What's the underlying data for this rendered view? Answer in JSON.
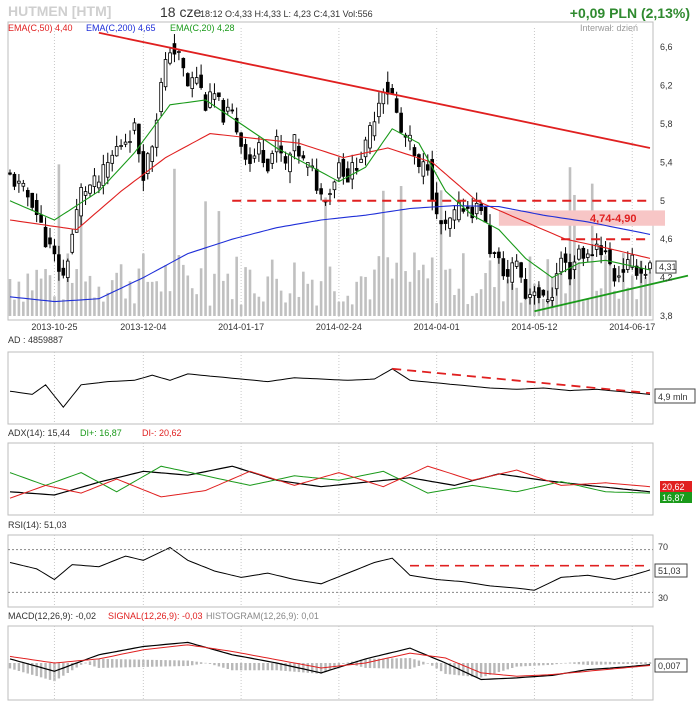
{
  "header": {
    "ticker": "HUTMEN [HTM]",
    "date": "18 cze",
    "time": "18:12",
    "ohlc": "O:4,33  H:4,33  L: 4,23  C:4,31  Vol:556",
    "change": "+0,09 PLN (2,13%)",
    "interval": "Interwał: dzień"
  },
  "legend": {
    "ema50": "EMA(C,50) 4,40",
    "ema200": "EMA(C,200) 4,65",
    "ema20": "EMA(C,20) 4,28"
  },
  "colors": {
    "ema50": "#e02020",
    "ema200": "#1f2fd8",
    "ema20": "#1a9a1a",
    "candle": "#000000",
    "volume": "#c0c0c0",
    "trend_red": "#e02020",
    "trend_green": "#1a9a1a",
    "band": "#f7c6c6",
    "grid": "#c8c8c8"
  },
  "resistance_band_label": "4,74-4,90",
  "last_price_label": "4,31",
  "chart_data": [
    {
      "type": "candlestick",
      "name": "price",
      "ylim": [
        3.8,
        6.8
      ],
      "y_ticks": [
        "6,6",
        "6,2",
        "5,8",
        "5,4",
        "5",
        "4,6",
        "4,2",
        "3,8"
      ],
      "x_ticks": [
        "2013-10-25",
        "2013-12-04",
        "2014-01-17",
        "2014-02-24",
        "2014-04-01",
        "2014-05-12",
        "2014-06-17"
      ],
      "close_path": [
        [
          0,
          5.25
        ],
        [
          5,
          5.0
        ],
        [
          8,
          4.6
        ],
        [
          12,
          4.2
        ],
        [
          16,
          5.1
        ],
        [
          20,
          5.2
        ],
        [
          24,
          5.55
        ],
        [
          28,
          5.75
        ],
        [
          30,
          5.3
        ],
        [
          32,
          5.6
        ],
        [
          34,
          6.2
        ],
        [
          36,
          6.6
        ],
        [
          38,
          6.5
        ],
        [
          40,
          6.2
        ],
        [
          42,
          6.3
        ],
        [
          44,
          6.0
        ],
        [
          46,
          6.1
        ],
        [
          48,
          5.9
        ],
        [
          50,
          5.9
        ],
        [
          52,
          5.6
        ],
        [
          54,
          5.4
        ],
        [
          56,
          5.55
        ],
        [
          58,
          5.4
        ],
        [
          60,
          5.6
        ],
        [
          62,
          5.35
        ],
        [
          64,
          5.6
        ],
        [
          66,
          5.4
        ],
        [
          68,
          5.3
        ],
        [
          70,
          5.05
        ],
        [
          72,
          5.1
        ],
        [
          74,
          5.4
        ],
        [
          76,
          5.25
        ],
        [
          78,
          5.4
        ],
        [
          80,
          5.55
        ],
        [
          82,
          5.9
        ],
        [
          84,
          6.2
        ],
        [
          86,
          6.1
        ],
        [
          88,
          5.7
        ],
        [
          90,
          5.6
        ],
        [
          92,
          5.3
        ],
        [
          94,
          5.4
        ],
        [
          96,
          4.8
        ],
        [
          98,
          4.7
        ],
        [
          100,
          4.85
        ],
        [
          102,
          4.95
        ],
        [
          104,
          4.9
        ],
        [
          106,
          4.95
        ],
        [
          108,
          4.5
        ],
        [
          110,
          4.35
        ],
        [
          112,
          4.2
        ],
        [
          114,
          4.4
        ],
        [
          116,
          4.0
        ],
        [
          118,
          4.1
        ],
        [
          120,
          3.95
        ],
        [
          122,
          4.05
        ],
        [
          124,
          4.4
        ],
        [
          126,
          4.25
        ],
        [
          128,
          4.5
        ],
        [
          130,
          4.4
        ],
        [
          132,
          4.55
        ],
        [
          134,
          4.45
        ],
        [
          136,
          4.2
        ],
        [
          138,
          4.3
        ],
        [
          140,
          4.35
        ],
        [
          142,
          4.25
        ],
        [
          144,
          4.31
        ]
      ],
      "series": [
        {
          "name": "EMA(C,50)",
          "last": 4.4,
          "path": [
            [
              0,
              4.8
            ],
            [
              15,
              4.7
            ],
            [
              25,
              5.1
            ],
            [
              35,
              5.45
            ],
            [
              45,
              5.7
            ],
            [
              55,
              5.65
            ],
            [
              65,
              5.6
            ],
            [
              75,
              5.45
            ],
            [
              85,
              5.55
            ],
            [
              95,
              5.4
            ],
            [
              105,
              5.0
            ],
            [
              115,
              4.8
            ],
            [
              125,
              4.6
            ],
            [
              135,
              4.5
            ],
            [
              144,
              4.4
            ]
          ]
        },
        {
          "name": "EMA(C,200)",
          "last": 4.65,
          "path": [
            [
              0,
              4.0
            ],
            [
              10,
              3.95
            ],
            [
              20,
              3.98
            ],
            [
              30,
              4.2
            ],
            [
              40,
              4.45
            ],
            [
              50,
              4.6
            ],
            [
              60,
              4.72
            ],
            [
              70,
              4.8
            ],
            [
              80,
              4.85
            ],
            [
              90,
              4.92
            ],
            [
              100,
              4.95
            ],
            [
              110,
              4.94
            ],
            [
              120,
              4.85
            ],
            [
              130,
              4.78
            ],
            [
              144,
              4.65
            ]
          ]
        },
        {
          "name": "EMA(C,20)",
          "last": 4.28,
          "path": [
            [
              0,
              5.0
            ],
            [
              10,
              4.8
            ],
            [
              20,
              5.1
            ],
            [
              28,
              5.5
            ],
            [
              36,
              6.0
            ],
            [
              44,
              6.05
            ],
            [
              52,
              5.8
            ],
            [
              60,
              5.55
            ],
            [
              68,
              5.35
            ],
            [
              74,
              5.2
            ],
            [
              80,
              5.35
            ],
            [
              86,
              5.75
            ],
            [
              92,
              5.6
            ],
            [
              98,
              5.1
            ],
            [
              104,
              4.85
            ],
            [
              110,
              4.7
            ],
            [
              116,
              4.4
            ],
            [
              122,
              4.2
            ],
            [
              128,
              4.35
            ],
            [
              134,
              4.38
            ],
            [
              144,
              4.28
            ]
          ]
        }
      ],
      "annotations": {
        "support_level": 5.0,
        "resistance_band": [
          4.74,
          4.9
        ],
        "dashed_level": 4.6,
        "down_trendline": [
          [
            20,
            6.75
          ],
          [
            144,
            5.55
          ]
        ],
        "up_trendline": [
          [
            118,
            3.85
          ],
          [
            150,
            4.22
          ]
        ]
      }
    },
    {
      "type": "line",
      "name": "AD",
      "title": "AD : 4859887",
      "value_label": "4,9 mln",
      "ylim": [
        0,
        100
      ],
      "path": [
        [
          0,
          45
        ],
        [
          5,
          40
        ],
        [
          8,
          55
        ],
        [
          12,
          20
        ],
        [
          16,
          55
        ],
        [
          22,
          60
        ],
        [
          28,
          62
        ],
        [
          32,
          70
        ],
        [
          36,
          62
        ],
        [
          40,
          72
        ],
        [
          46,
          68
        ],
        [
          52,
          64
        ],
        [
          58,
          60
        ],
        [
          64,
          66
        ],
        [
          70,
          64
        ],
        [
          76,
          62
        ],
        [
          82,
          64
        ],
        [
          86,
          80
        ],
        [
          90,
          62
        ],
        [
          96,
          58
        ],
        [
          102,
          54
        ],
        [
          108,
          50
        ],
        [
          114,
          48
        ],
        [
          120,
          50
        ],
        [
          126,
          46
        ],
        [
          132,
          48
        ],
        [
          138,
          44
        ],
        [
          144,
          40
        ]
      ],
      "trendline": [
        [
          86,
          80
        ],
        [
          144,
          42
        ]
      ]
    },
    {
      "type": "line",
      "name": "ADX",
      "title": "ADX(14): 15,44",
      "di_plus_label": "DI+: 16,87",
      "di_minus_label": "DI-: 20,62",
      "value_labels": [
        "20,62",
        "16,87"
      ],
      "ylim": [
        0,
        100
      ],
      "series": [
        {
          "name": "ADX",
          "path": [
            [
              0,
              30
            ],
            [
              10,
              25
            ],
            [
              20,
              45
            ],
            [
              30,
              62
            ],
            [
              40,
              56
            ],
            [
              50,
              70
            ],
            [
              60,
              48
            ],
            [
              70,
              38
            ],
            [
              80,
              45
            ],
            [
              90,
              52
            ],
            [
              100,
              40
            ],
            [
              110,
              58
            ],
            [
              120,
              48
            ],
            [
              130,
              40
            ],
            [
              144,
              30
            ]
          ]
        },
        {
          "name": "DI+",
          "path": [
            [
              0,
              60
            ],
            [
              8,
              40
            ],
            [
              16,
              60
            ],
            [
              24,
              30
            ],
            [
              34,
              70
            ],
            [
              44,
              55
            ],
            [
              54,
              40
            ],
            [
              64,
              55
            ],
            [
              74,
              48
            ],
            [
              84,
              62
            ],
            [
              94,
              28
            ],
            [
              104,
              40
            ],
            [
              114,
              30
            ],
            [
              124,
              46
            ],
            [
              134,
              30
            ],
            [
              144,
              28
            ]
          ]
        },
        {
          "name": "DI-",
          "path": [
            [
              0,
              20
            ],
            [
              8,
              40
            ],
            [
              16,
              28
            ],
            [
              24,
              50
            ],
            [
              34,
              22
            ],
            [
              44,
              32
            ],
            [
              54,
              62
            ],
            [
              64,
              40
            ],
            [
              74,
              60
            ],
            [
              84,
              38
            ],
            [
              94,
              70
            ],
            [
              104,
              48
            ],
            [
              114,
              64
            ],
            [
              124,
              40
            ],
            [
              134,
              44
            ],
            [
              144,
              38
            ]
          ]
        }
      ]
    },
    {
      "type": "line",
      "name": "RSI",
      "title": "RSI(14): 51,03",
      "value_label": "51,03",
      "ylim": [
        20,
        80
      ],
      "y_ticks": [
        "70",
        "30"
      ],
      "path": [
        [
          0,
          58
        ],
        [
          6,
          52
        ],
        [
          10,
          42
        ],
        [
          14,
          56
        ],
        [
          20,
          54
        ],
        [
          26,
          64
        ],
        [
          30,
          60
        ],
        [
          36,
          72
        ],
        [
          40,
          60
        ],
        [
          46,
          50
        ],
        [
          52,
          44
        ],
        [
          58,
          48
        ],
        [
          64,
          42
        ],
        [
          70,
          38
        ],
        [
          76,
          48
        ],
        [
          82,
          58
        ],
        [
          86,
          62
        ],
        [
          90,
          46
        ],
        [
          96,
          42
        ],
        [
          102,
          40
        ],
        [
          108,
          36
        ],
        [
          114,
          34
        ],
        [
          118,
          32
        ],
        [
          124,
          44
        ],
        [
          130,
          46
        ],
        [
          136,
          42
        ],
        [
          140,
          46
        ],
        [
          144,
          51
        ]
      ],
      "trendline": [
        [
          90,
          55
        ],
        [
          144,
          55
        ]
      ]
    },
    {
      "type": "line",
      "name": "MACD",
      "title": "MACD(12,26,9): -0,02",
      "signal_label": "SIGNAL(12,26,9): -0,03",
      "histogram_label": "HISTOGRAM(12,26,9): 0,01",
      "value_label": "0,007",
      "ylim": [
        -0.4,
        0.4
      ],
      "series": [
        {
          "name": "MACD",
          "path": [
            [
              0,
              0.05
            ],
            [
              10,
              -0.1
            ],
            [
              20,
              0.1
            ],
            [
              30,
              0.2
            ],
            [
              40,
              0.25
            ],
            [
              50,
              0.1
            ],
            [
              60,
              0.0
            ],
            [
              70,
              -0.12
            ],
            [
              80,
              0.05
            ],
            [
              90,
              0.18
            ],
            [
              98,
              0.0
            ],
            [
              106,
              -0.2
            ],
            [
              114,
              -0.18
            ],
            [
              122,
              -0.15
            ],
            [
              130,
              -0.08
            ],
            [
              138,
              -0.05
            ],
            [
              144,
              -0.02
            ]
          ]
        },
        {
          "name": "SIGNAL",
          "path": [
            [
              0,
              0.08
            ],
            [
              10,
              0.0
            ],
            [
              20,
              0.05
            ],
            [
              30,
              0.16
            ],
            [
              40,
              0.22
            ],
            [
              50,
              0.14
            ],
            [
              60,
              0.04
            ],
            [
              70,
              -0.06
            ],
            [
              80,
              0.0
            ],
            [
              90,
              0.12
            ],
            [
              98,
              0.06
            ],
            [
              106,
              -0.12
            ],
            [
              114,
              -0.16
            ],
            [
              122,
              -0.14
            ],
            [
              130,
              -0.1
            ],
            [
              138,
              -0.06
            ],
            [
              144,
              -0.03
            ]
          ]
        }
      ]
    }
  ]
}
